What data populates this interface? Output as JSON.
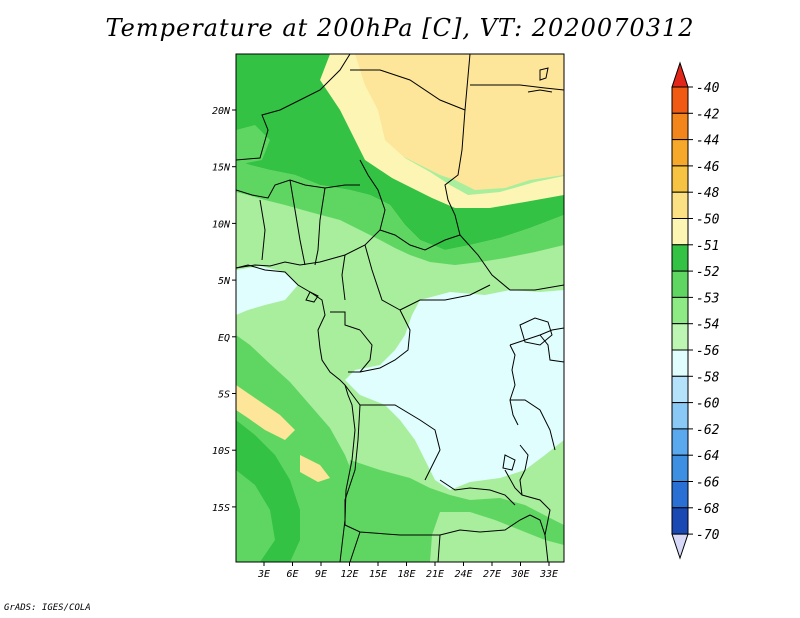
{
  "title": "Temperature at 200hPa [C], VT: 2020070312",
  "credit": "GrADS: IGES/COLA",
  "map": {
    "lon_labels": [
      "3E",
      "6E",
      "9E",
      "12E",
      "15E",
      "18E",
      "21E",
      "24E",
      "27E",
      "30E",
      "33E"
    ],
    "lat_labels": [
      "20N",
      "15N",
      "10N",
      "5N",
      "EQ",
      "5S",
      "10S",
      "15S"
    ]
  },
  "colorbar": {
    "levels": [
      "-40",
      "-42",
      "-44",
      "-46",
      "-48",
      "-50",
      "-51",
      "-52",
      "-53",
      "-54",
      "-56",
      "-58",
      "-60",
      "-62",
      "-64",
      "-66",
      "-68",
      "-70"
    ],
    "colors": [
      "#e8261a",
      "#f05a12",
      "#f2851c",
      "#f5a82a",
      "#f7c343",
      "#fbe184",
      "#fdf5b3",
      "#33c244",
      "#5fd662",
      "#8eea85",
      "#bdf5b3",
      "#e0fefd",
      "#b4e2fb",
      "#8ac9f5",
      "#5aa9ef",
      "#3d8fe2",
      "#2a6fd3",
      "#1a49b4",
      "#0c2990"
    ],
    "top_arrow": "#e1261a",
    "bottom_arrow": "#d8d8f8"
  },
  "legend_colors": {
    "lt_m50": "#fde699",
    "m50_m51": "#fdf5b3",
    "m51_m52": "#33c244",
    "m52_m53": "#5fd662",
    "m53_m54": "#a8ee9d",
    "m54_m56": "#e0fefd"
  }
}
